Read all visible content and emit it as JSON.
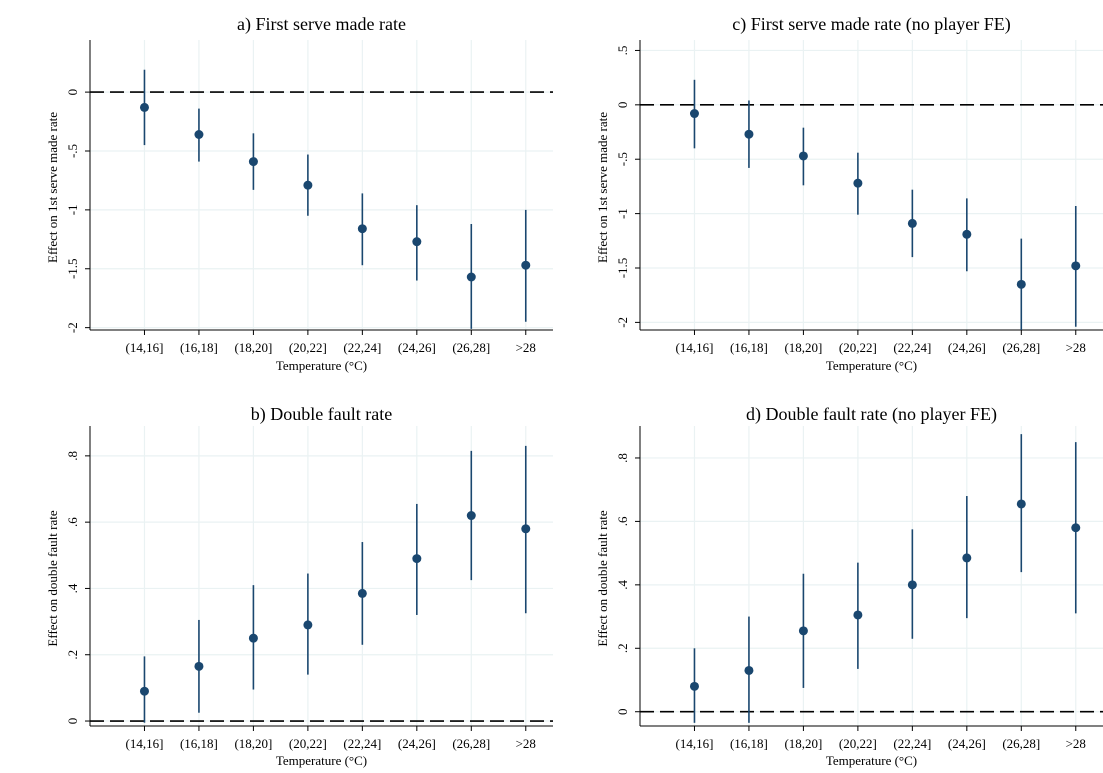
{
  "chart_data": [
    {
      "type": "scatter",
      "title": "a) First serve made rate",
      "xlabel": "Temperature (°C)",
      "ylabel": "Effect on 1st serve made rate",
      "categories": [
        "(14,16]",
        "(16,18]",
        "(18,20]",
        "(20,22]",
        "(22,24]",
        "(24,26]",
        "(26,28]",
        ">28"
      ],
      "values": [
        -0.13,
        -0.36,
        -0.59,
        -0.79,
        -1.16,
        -1.27,
        -1.57,
        -1.47
      ],
      "ci_low": [
        -0.45,
        -0.59,
        -0.83,
        -1.05,
        -1.47,
        -1.6,
        -2.01,
        -1.95
      ],
      "ci_high": [
        0.19,
        -0.14,
        -0.35,
        -0.53,
        -0.86,
        -0.96,
        -1.12,
        -1.0
      ],
      "yticks": [
        0,
        -0.5,
        -1,
        -1.5,
        -2
      ],
      "ytick_labels": [
        "0",
        "-.5",
        "-1",
        "-1.5",
        "-2"
      ],
      "ylim": [
        -2.02,
        0.4
      ],
      "reference_line": 0,
      "grid": true,
      "color": "#1a476f"
    },
    {
      "type": "scatter",
      "title": "c) First serve made rate  (no player FE)",
      "xlabel": "Temperature (°C)",
      "ylabel": "Effect on 1st serve made rate",
      "categories": [
        "(14,16]",
        "(16,18]",
        "(18,20]",
        "(20,22]",
        "(22,24]",
        "(24,26]",
        "(26,28]",
        ">28"
      ],
      "values": [
        -0.08,
        -0.27,
        -0.47,
        -0.72,
        -1.09,
        -1.19,
        -1.65,
        -1.48
      ],
      "ci_low": [
        -0.4,
        -0.58,
        -0.74,
        -1.01,
        -1.4,
        -1.53,
        -2.07,
        -2.04
      ],
      "ci_high": [
        0.23,
        0.04,
        -0.21,
        -0.44,
        -0.78,
        -0.86,
        -1.23,
        -0.93
      ],
      "yticks": [
        0.5,
        0,
        -0.5,
        -1,
        -1.5,
        -2
      ],
      "ytick_labels": [
        ".5",
        "0",
        "-.5",
        "-1",
        "-1.5",
        "-2"
      ],
      "ylim": [
        -2.07,
        0.55
      ],
      "reference_line": 0,
      "grid": true,
      "color": "#1a476f"
    },
    {
      "type": "scatter",
      "title": "b) Double fault rate",
      "xlabel": "Temperature (°C)",
      "ylabel": "Effect on double fault rate",
      "categories": [
        "(14,16]",
        "(16,18]",
        "(18,20]",
        "(20,22]",
        "(22,24]",
        "(24,26]",
        "(26,28]",
        ">28"
      ],
      "values": [
        0.09,
        0.165,
        0.25,
        0.29,
        0.385,
        0.49,
        0.62,
        0.58
      ],
      "ci_low": [
        -0.005,
        0.025,
        0.095,
        0.14,
        0.23,
        0.32,
        0.425,
        0.325
      ],
      "ci_high": [
        0.195,
        0.305,
        0.41,
        0.445,
        0.54,
        0.655,
        0.815,
        0.83
      ],
      "yticks": [
        0,
        0.2,
        0.4,
        0.6,
        0.8
      ],
      "ytick_labels": [
        "0",
        ".2",
        ".4",
        ".6",
        ".8"
      ],
      "ylim": [
        -0.015,
        0.875
      ],
      "reference_line": 0,
      "grid": true,
      "color": "#1a476f"
    },
    {
      "type": "scatter",
      "title": "d) Double fault rate  (no player FE)",
      "xlabel": "Temperature (°C)",
      "ylabel": "Effect on double fault rate",
      "categories": [
        "(14,16]",
        "(16,18]",
        "(18,20]",
        "(20,22]",
        "(22,24]",
        "(24,26]",
        "(26,28]",
        ">28"
      ],
      "values": [
        0.08,
        0.13,
        0.255,
        0.305,
        0.4,
        0.485,
        0.655,
        0.58
      ],
      "ci_low": [
        -0.035,
        -0.035,
        0.075,
        0.135,
        0.23,
        0.295,
        0.44,
        0.31
      ],
      "ci_high": [
        0.2,
        0.3,
        0.435,
        0.47,
        0.575,
        0.68,
        0.875,
        0.85
      ],
      "yticks": [
        0,
        0.2,
        0.4,
        0.6,
        0.8
      ],
      "ytick_labels": [
        "0",
        ".2",
        ".4",
        ".6",
        ".8"
      ],
      "ylim": [
        -0.045,
        0.885
      ],
      "reference_line": 0,
      "grid": true,
      "color": "#1a476f"
    }
  ]
}
